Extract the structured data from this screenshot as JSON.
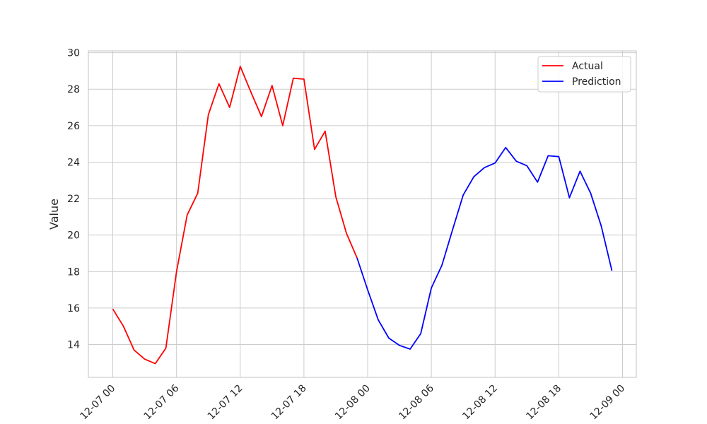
{
  "chart_data": {
    "type": "line",
    "title": "",
    "xlabel": "",
    "ylabel": "Value",
    "x_start": "2023-12-07 00:00",
    "x_step_hours": 1,
    "x_ticks": [
      "12-07 00",
      "12-07 06",
      "12-07 12",
      "12-07 18",
      "12-08 00",
      "12-08 06",
      "12-08 12",
      "12-08 18",
      "12-09 00"
    ],
    "y_ticks": [
      14,
      16,
      18,
      20,
      22,
      24,
      26,
      28,
      30
    ],
    "xlim_hours": [
      -2.3,
      49.3
    ],
    "ylim": [
      12.2,
      30.1
    ],
    "grid": true,
    "legend_position": "top-right",
    "series": [
      {
        "name": "Actual",
        "color": "#ff0000",
        "x_hours": [
          0,
          1,
          2,
          3,
          4,
          5,
          6,
          7,
          8,
          9,
          10,
          11,
          12,
          13,
          14,
          15,
          16,
          17,
          18,
          19,
          20,
          21,
          22,
          23
        ],
        "values": [
          15.95,
          15.0,
          13.7,
          13.2,
          12.95,
          13.8,
          18.0,
          21.1,
          22.3,
          26.6,
          28.3,
          27.0,
          29.25,
          27.85,
          26.5,
          28.2,
          26.0,
          28.6,
          28.55,
          24.7,
          25.7,
          22.1,
          20.1,
          18.75
        ]
      },
      {
        "name": "Prediction",
        "color": "#0000ff",
        "x_hours": [
          23,
          24,
          25,
          26,
          27,
          28,
          29,
          30,
          31,
          32,
          33,
          34,
          35,
          36,
          37,
          38,
          39,
          40,
          41,
          42,
          43,
          44,
          45,
          46,
          47
        ],
        "values": [
          18.75,
          17.0,
          15.35,
          14.35,
          13.95,
          13.75,
          14.6,
          17.1,
          18.35,
          20.3,
          22.2,
          23.2,
          23.7,
          23.95,
          24.8,
          24.05,
          23.8,
          22.9,
          24.35,
          24.3,
          22.05,
          23.5,
          22.3,
          20.5,
          18.05
        ]
      }
    ]
  }
}
